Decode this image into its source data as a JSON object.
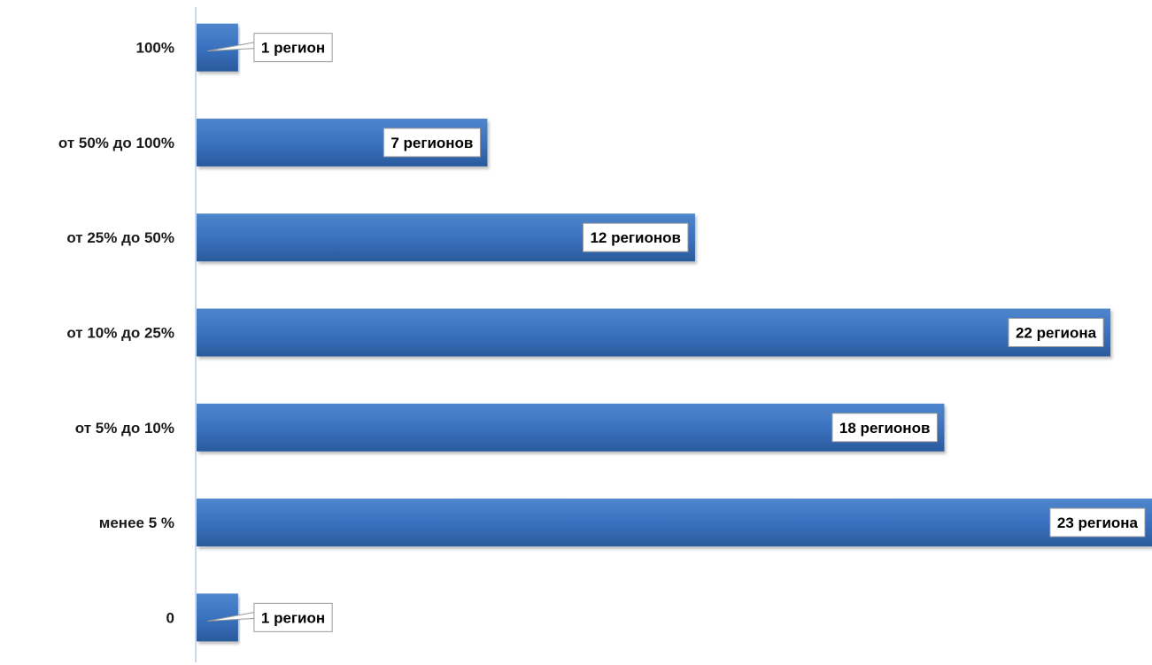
{
  "chart_data": {
    "type": "bar",
    "orientation": "horizontal",
    "categories": [
      "100%",
      "от 50% до 100%",
      "от 25% до 50%",
      "от 10% до 25%",
      "от 5% до 10%",
      "менее 5 %",
      "0"
    ],
    "values": [
      1,
      7,
      12,
      22,
      18,
      23,
      1
    ],
    "data_labels": [
      "1 регион",
      "7 регионов",
      "12 регионов",
      "22 региона",
      "18 регионов",
      "23 региона",
      "1 регион"
    ],
    "title": "",
    "xlabel": "",
    "ylabel": "",
    "xlim": [
      0,
      23
    ],
    "grid": false,
    "legend": "none",
    "colors": {
      "bar_top": "#4f86cc",
      "bar_mid": "#3a72c0",
      "bar_bottom": "#2a5a9c",
      "axis": "#b8cde6",
      "label_border": "#9a9a9a"
    }
  }
}
